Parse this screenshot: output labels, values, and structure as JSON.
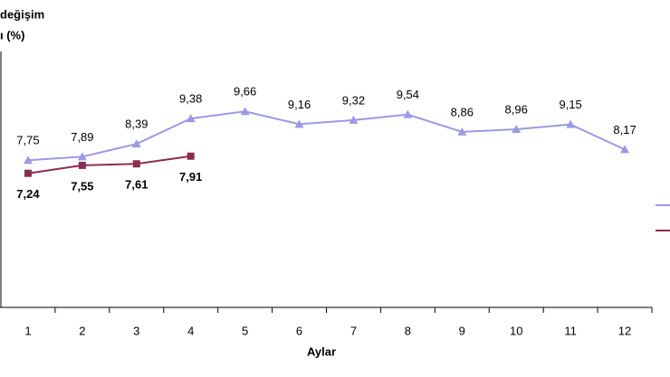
{
  "chart_data": {
    "type": "line",
    "title_lines": [
      "değişim",
      "ı (%)"
    ],
    "x_label": "Aylar",
    "categories": [
      "1",
      "2",
      "3",
      "4",
      "5",
      "6",
      "7",
      "8",
      "9",
      "10",
      "11",
      "12"
    ],
    "series": [
      {
        "color": "#9a9ae4",
        "marker": "triangle",
        "values": [
          7.75,
          7.89,
          8.39,
          9.38,
          9.66,
          9.16,
          9.32,
          9.54,
          8.86,
          8.96,
          9.15,
          8.17
        ],
        "value_labels": [
          "7,75",
          "7,89",
          "8,39",
          "9,38",
          "9,66",
          "9,16",
          "9,32",
          "9,54",
          "8,86",
          "8,96",
          "9,15",
          "8,17"
        ]
      },
      {
        "color": "#8a2e50",
        "marker": "square",
        "values": [
          7.24,
          7.55,
          7.61,
          7.91,
          null,
          null,
          null,
          null,
          null,
          null,
          null,
          null
        ],
        "value_labels": [
          "7,24",
          "7,55",
          "7,61",
          "7,91",
          null,
          null,
          null,
          null,
          null,
          null,
          null,
          null
        ]
      }
    ],
    "ylim": [
      2,
      12
    ]
  }
}
